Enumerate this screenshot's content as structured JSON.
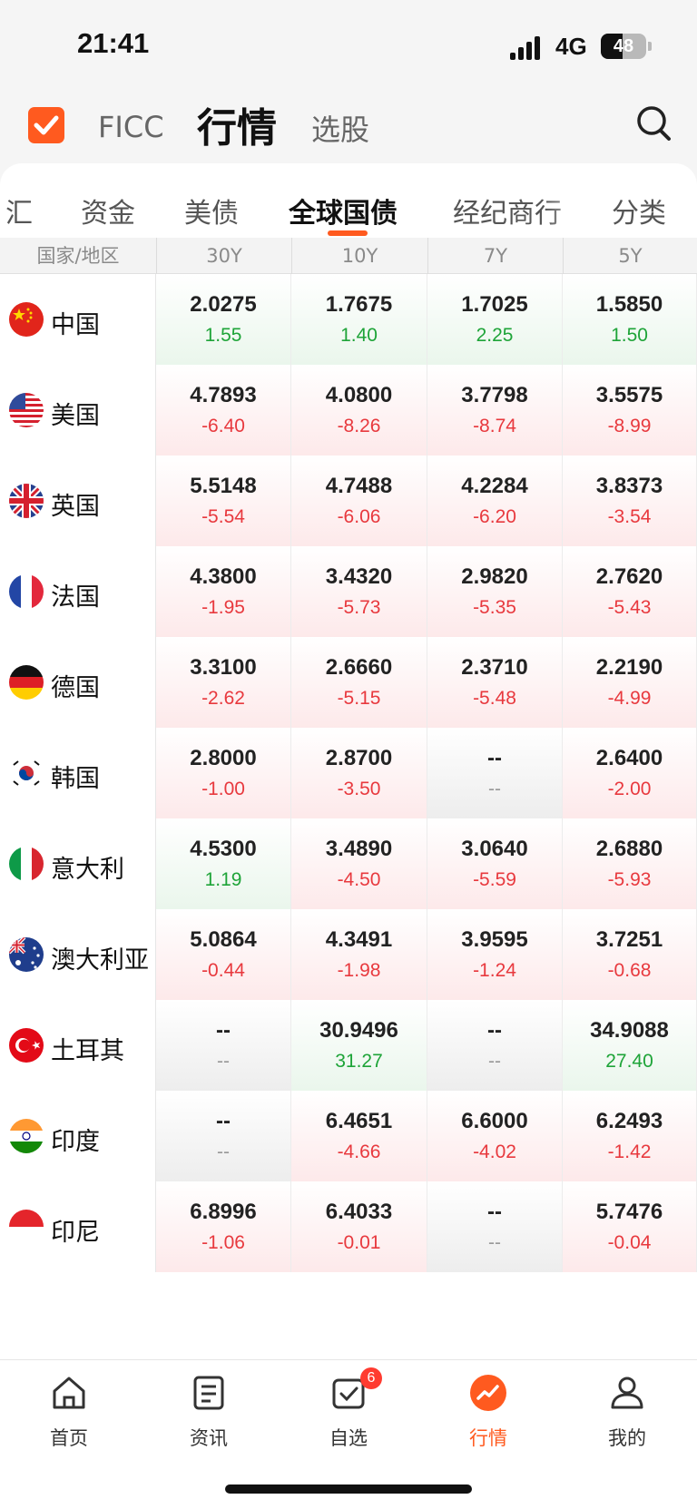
{
  "status_bar": {
    "time": "21:41",
    "network": "4G",
    "battery": "48",
    "battery_level": 0.48
  },
  "header": {
    "tabs": [
      "FICC",
      "行情",
      "选股"
    ],
    "active_tab": "行情",
    "accent_color": "#ff5a1f"
  },
  "subtabs": {
    "items": [
      "汇",
      "资金",
      "美债",
      "全球国债",
      "经纪商行",
      "分类"
    ],
    "active": "全球国债"
  },
  "table": {
    "columns": [
      "国家/地区",
      "30Y",
      "10Y",
      "7Y",
      "5Y"
    ],
    "rows": [
      {
        "country": "中国",
        "flag": "cn-flag-icon",
        "cells": [
          {
            "value": "2.0275",
            "change": "1.55",
            "dir": "up"
          },
          {
            "value": "1.7675",
            "change": "1.40",
            "dir": "up"
          },
          {
            "value": "1.7025",
            "change": "2.25",
            "dir": "up"
          },
          {
            "value": "1.5850",
            "change": "1.50",
            "dir": "up"
          }
        ]
      },
      {
        "country": "美国",
        "flag": "us-flag-icon",
        "cells": [
          {
            "value": "4.7893",
            "change": "-6.40",
            "dir": "down"
          },
          {
            "value": "4.0800",
            "change": "-8.26",
            "dir": "down"
          },
          {
            "value": "3.7798",
            "change": "-8.74",
            "dir": "down"
          },
          {
            "value": "3.5575",
            "change": "-8.99",
            "dir": "down"
          }
        ]
      },
      {
        "country": "英国",
        "flag": "uk-flag-icon",
        "cells": [
          {
            "value": "5.5148",
            "change": "-5.54",
            "dir": "down"
          },
          {
            "value": "4.7488",
            "change": "-6.06",
            "dir": "down"
          },
          {
            "value": "4.2284",
            "change": "-6.20",
            "dir": "down"
          },
          {
            "value": "3.8373",
            "change": "-3.54",
            "dir": "down"
          }
        ]
      },
      {
        "country": "法国",
        "flag": "fr-flag-icon",
        "cells": [
          {
            "value": "4.3800",
            "change": "-1.95",
            "dir": "down"
          },
          {
            "value": "3.4320",
            "change": "-5.73",
            "dir": "down"
          },
          {
            "value": "2.9820",
            "change": "-5.35",
            "dir": "down"
          },
          {
            "value": "2.7620",
            "change": "-5.43",
            "dir": "down"
          }
        ]
      },
      {
        "country": "德国",
        "flag": "de-flag-icon",
        "cells": [
          {
            "value": "3.3100",
            "change": "-2.62",
            "dir": "down"
          },
          {
            "value": "2.6660",
            "change": "-5.15",
            "dir": "down"
          },
          {
            "value": "2.3710",
            "change": "-5.48",
            "dir": "down"
          },
          {
            "value": "2.2190",
            "change": "-4.99",
            "dir": "down"
          }
        ]
      },
      {
        "country": "韩国",
        "flag": "kr-flag-icon",
        "cells": [
          {
            "value": "2.8000",
            "change": "-1.00",
            "dir": "down"
          },
          {
            "value": "2.8700",
            "change": "-3.50",
            "dir": "down"
          },
          {
            "value": "--",
            "change": "--",
            "dir": "none"
          },
          {
            "value": "2.6400",
            "change": "-2.00",
            "dir": "down"
          }
        ]
      },
      {
        "country": "意大利",
        "flag": "it-flag-icon",
        "cells": [
          {
            "value": "4.5300",
            "change": "1.19",
            "dir": "up"
          },
          {
            "value": "3.4890",
            "change": "-4.50",
            "dir": "down"
          },
          {
            "value": "3.0640",
            "change": "-5.59",
            "dir": "down"
          },
          {
            "value": "2.6880",
            "change": "-5.93",
            "dir": "down"
          }
        ]
      },
      {
        "country": "澳大利亚",
        "flag": "au-flag-icon",
        "cells": [
          {
            "value": "5.0864",
            "change": "-0.44",
            "dir": "down"
          },
          {
            "value": "4.3491",
            "change": "-1.98",
            "dir": "down"
          },
          {
            "value": "3.9595",
            "change": "-1.24",
            "dir": "down"
          },
          {
            "value": "3.7251",
            "change": "-0.68",
            "dir": "down"
          }
        ]
      },
      {
        "country": "土耳其",
        "flag": "tr-flag-icon",
        "cells": [
          {
            "value": "--",
            "change": "--",
            "dir": "none"
          },
          {
            "value": "30.9496",
            "change": "31.27",
            "dir": "up"
          },
          {
            "value": "--",
            "change": "--",
            "dir": "none"
          },
          {
            "value": "34.9088",
            "change": "27.40",
            "dir": "up"
          }
        ]
      },
      {
        "country": "印度",
        "flag": "in-flag-icon",
        "cells": [
          {
            "value": "--",
            "change": "--",
            "dir": "none"
          },
          {
            "value": "6.4651",
            "change": "-4.66",
            "dir": "down"
          },
          {
            "value": "6.6000",
            "change": "-4.02",
            "dir": "down"
          },
          {
            "value": "6.2493",
            "change": "-1.42",
            "dir": "down"
          }
        ]
      },
      {
        "country": "印尼",
        "flag": "id-flag-icon",
        "cells": [
          {
            "value": "6.8996",
            "change": "-1.06",
            "dir": "down"
          },
          {
            "value": "6.4033",
            "change": "-0.01",
            "dir": "down"
          },
          {
            "value": "--",
            "change": "--",
            "dir": "none"
          },
          {
            "value": "5.7476",
            "change": "-0.04",
            "dir": "down"
          }
        ]
      }
    ]
  },
  "bottom_nav": {
    "items": [
      {
        "label": "首页",
        "icon": "home-icon"
      },
      {
        "label": "资讯",
        "icon": "news-icon"
      },
      {
        "label": "自选",
        "icon": "watchlist-icon",
        "badge": "6"
      },
      {
        "label": "行情",
        "icon": "market-icon"
      },
      {
        "label": "我的",
        "icon": "profile-icon"
      }
    ],
    "active": "行情"
  },
  "colors": {
    "up": "#1ea438",
    "down": "#e8393e",
    "accent": "#ff5a1f"
  }
}
